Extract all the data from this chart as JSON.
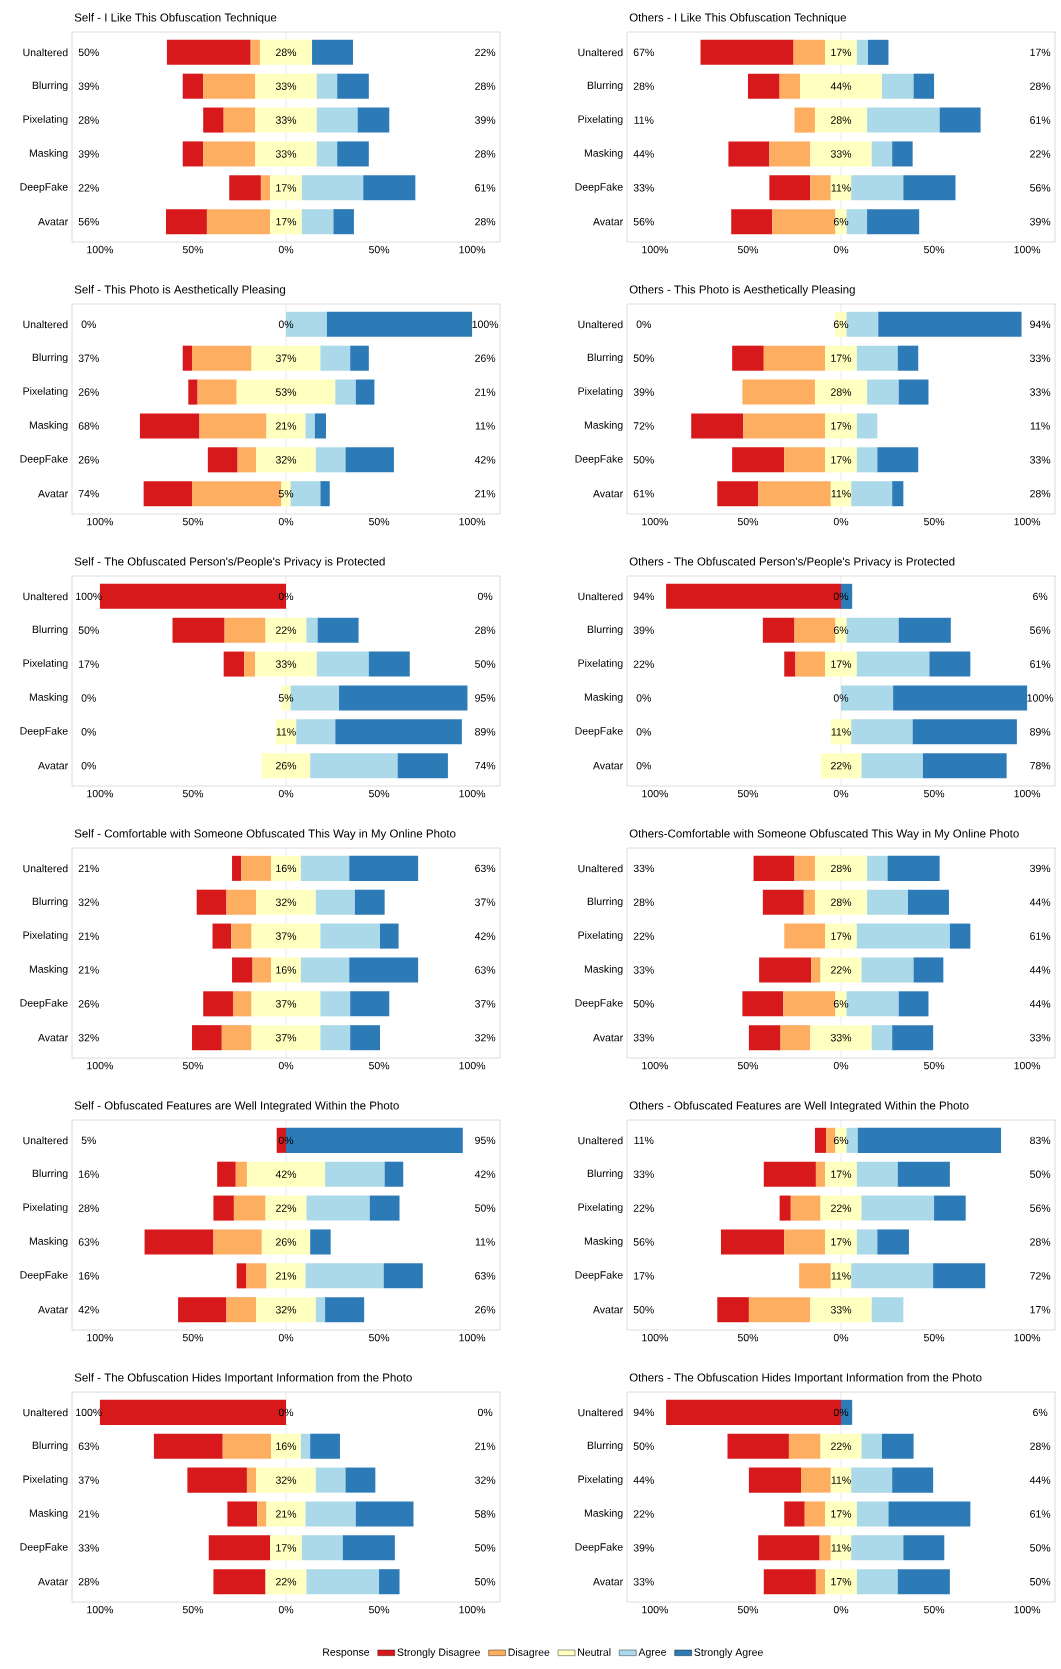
{
  "chart_data": [
    {
      "type": "bar",
      "orientation": "horizontal",
      "title": "Self - I Like This Obfuscation Technique",
      "categories": [
        "Unaltered",
        "Blurring",
        "Pixelating",
        "Masking",
        "DeepFake",
        "Avatar"
      ],
      "xlim": [
        -115,
        115
      ],
      "xticks": [
        {
          "value": -100,
          "label": "100%"
        },
        {
          "value": -50,
          "label": "50%"
        },
        {
          "value": 0,
          "label": "0%"
        },
        {
          "value": 50,
          "label": "50%"
        },
        {
          "value": 100,
          "label": "100%"
        }
      ],
      "ref_lines": [
        {
          "axis": "x",
          "value": 0,
          "color": "#c8c8c8"
        }
      ],
      "series": [
        {
          "color": "#d7191c",
          "values": [
            45,
            11,
            11,
            11,
            17,
            22
          ],
          "base": [
            -64,
            -55.5,
            -44.5,
            -55.5,
            -30.5,
            -64.5
          ]
        },
        {
          "color": "#fdae61",
          "values": [
            5,
            28,
            17,
            28,
            5,
            34
          ],
          "base": [
            -19,
            -44.5,
            -33.5,
            -44.5,
            -13.5,
            -42.5
          ]
        },
        {
          "color": "#ffffbf",
          "values": [
            28,
            33,
            33,
            33,
            17,
            17
          ],
          "base": [
            -14,
            -16.5,
            -16.5,
            -16.5,
            -8.5,
            -8.5
          ],
          "value_labels": [
            "28%",
            "33%",
            "33%",
            "33%",
            "17%",
            "17%"
          ]
        },
        {
          "color": "#abd9e9",
          "values": [
            0,
            11,
            22,
            11,
            33,
            17
          ],
          "base": [
            null,
            16.5,
            16.5,
            16.5,
            8.5,
            8.5
          ]
        },
        {
          "color": "#2c7bb6",
          "values": [
            22,
            17,
            17,
            17,
            28,
            11
          ],
          "base": [
            14,
            27.5,
            38.5,
            27.5,
            41.5,
            25.5
          ]
        }
      ],
      "annotations": [
        "50%",
        "39%",
        "28%",
        "39%",
        "22%",
        "56%",
        "22%",
        "28%",
        "39%",
        "28%",
        "61%",
        "28%"
      ]
    },
    {
      "type": "bar",
      "orientation": "horizontal",
      "title": "Others - I Like This Obfuscation Technique",
      "categories": [
        "Unaltered",
        "Blurring",
        "Pixelating",
        "Masking",
        "DeepFake",
        "Avatar"
      ],
      "xlim": [
        -115,
        115
      ],
      "xticks": [
        {
          "value": -100,
          "label": "100%"
        },
        {
          "value": -50,
          "label": "50%"
        },
        {
          "value": 0,
          "label": "0%"
        },
        {
          "value": 50,
          "label": "50%"
        },
        {
          "value": 100,
          "label": "100%"
        }
      ],
      "ref_lines": [
        {
          "axis": "x",
          "value": 0,
          "color": "#c8c8c8"
        }
      ],
      "series": [
        {
          "color": "#d7191c",
          "values": [
            50,
            17,
            0,
            22,
            22,
            22
          ],
          "base": [
            -75.5,
            -50,
            null,
            -60.5,
            -38.5,
            -59
          ]
        },
        {
          "color": "#fdae61",
          "values": [
            17,
            11,
            11,
            22,
            11,
            34
          ],
          "base": [
            -25.5,
            -33,
            -25,
            -38.5,
            -16.5,
            -37
          ]
        },
        {
          "color": "#ffffbf",
          "values": [
            17,
            44,
            28,
            33,
            11,
            6
          ],
          "base": [
            -8.5,
            -22,
            -14,
            -16.5,
            -5.5,
            -3
          ],
          "value_labels": [
            "17%",
            "44%",
            "28%",
            "33%",
            "11%",
            "6%"
          ]
        },
        {
          "color": "#abd9e9",
          "values": [
            6,
            17,
            39,
            11,
            28,
            11
          ],
          "base": [
            8.5,
            22,
            14,
            16.5,
            5.5,
            3
          ]
        },
        {
          "color": "#2c7bb6",
          "values": [
            11,
            11,
            22,
            11,
            28,
            28
          ],
          "base": [
            14.5,
            39,
            53,
            27.5,
            33.5,
            14
          ]
        }
      ],
      "annotations": [
        "67%",
        "28%",
        "11%",
        "44%",
        "33%",
        "56%",
        "17%",
        "28%",
        "61%",
        "22%",
        "56%",
        "39%"
      ]
    },
    {
      "type": "bar",
      "orientation": "horizontal",
      "title": "Self - This Photo is Aesthetically Pleasing",
      "categories": [
        "Unaltered",
        "Blurring",
        "Pixelating",
        "Masking",
        "DeepFake",
        "Avatar"
      ],
      "xlim": [
        -115,
        115
      ],
      "xticks": [
        {
          "value": -100,
          "label": "100%"
        },
        {
          "value": -50,
          "label": "50%"
        },
        {
          "value": 0,
          "label": "0%"
        },
        {
          "value": 50,
          "label": "50%"
        },
        {
          "value": 100,
          "label": "100%"
        }
      ],
      "ref_lines": [
        {
          "axis": "x",
          "value": 0,
          "color": "#c8c8c8"
        }
      ],
      "series": [
        {
          "color": "#d7191c",
          "values": [
            0,
            5,
            5,
            32,
            16,
            26
          ],
          "base": [
            null,
            -55.5,
            -52.5,
            -78.5,
            -42,
            -76.5
          ]
        },
        {
          "color": "#fdae61",
          "values": [
            0,
            32,
            21,
            36,
            10,
            48
          ],
          "base": [
            null,
            -50.5,
            -47.5,
            -46.5,
            -26,
            -50.5
          ]
        },
        {
          "color": "#ffffbf",
          "values": [
            0,
            37,
            53,
            21,
            32,
            5
          ],
          "base": [
            null,
            -18.5,
            -26.5,
            -10.5,
            -16,
            -2.5
          ],
          "value_labels": [
            "0%",
            "37%",
            "53%",
            "21%",
            "32%",
            "5%"
          ]
        },
        {
          "color": "#abd9e9",
          "values": [
            22,
            16,
            11,
            5,
            16,
            16
          ],
          "base": [
            0,
            18.5,
            26.5,
            10.5,
            16,
            2.5
          ]
        },
        {
          "color": "#2c7bb6",
          "values": [
            78,
            10,
            10,
            6,
            26,
            5
          ],
          "base": [
            22,
            34.5,
            37.5,
            15.5,
            32,
            18.5
          ]
        }
      ],
      "annotations": [
        "0%",
        "37%",
        "26%",
        "68%",
        "26%",
        "74%",
        "100%",
        "26%",
        "21%",
        "11%",
        "42%",
        "21%"
      ]
    },
    {
      "type": "bar",
      "orientation": "horizontal",
      "title": "Others - This Photo is Aesthetically Pleasing",
      "categories": [
        "Unaltered",
        "Blurring",
        "Pixelating",
        "Masking",
        "DeepFake",
        "Avatar"
      ],
      "xlim": [
        -115,
        115
      ],
      "xticks": [
        {
          "value": -100,
          "label": "100%"
        },
        {
          "value": -50,
          "label": "50%"
        },
        {
          "value": 0,
          "label": "0%"
        },
        {
          "value": 50,
          "label": "50%"
        },
        {
          "value": 100,
          "label": "100%"
        }
      ],
      "ref_lines": [
        {
          "axis": "x",
          "value": 0,
          "color": "#c8c8c8"
        }
      ],
      "series": [
        {
          "color": "#d7191c",
          "values": [
            0,
            17,
            0,
            28,
            28,
            22
          ],
          "base": [
            null,
            -58.5,
            null,
            -80.5,
            -58.5,
            -66.5
          ]
        },
        {
          "color": "#fdae61",
          "values": [
            0,
            33,
            39,
            44,
            22,
            39
          ],
          "base": [
            null,
            -41.5,
            -53,
            -52.5,
            -30.5,
            -44.5
          ]
        },
        {
          "color": "#ffffbf",
          "values": [
            6,
            17,
            28,
            17,
            17,
            11
          ],
          "base": [
            -3,
            -8.5,
            -14,
            -8.5,
            -8.5,
            -5.5
          ],
          "value_labels": [
            "6%",
            "17%",
            "28%",
            "17%",
            "17%",
            "11%"
          ]
        },
        {
          "color": "#abd9e9",
          "values": [
            17,
            22,
            17,
            11,
            11,
            22
          ],
          "base": [
            3,
            8.5,
            14,
            8.5,
            8.5,
            5.5
          ]
        },
        {
          "color": "#2c7bb6",
          "values": [
            77,
            11,
            16,
            0,
            22,
            6
          ],
          "base": [
            20,
            30.5,
            31,
            null,
            19.5,
            27.5
          ]
        }
      ],
      "annotations": [
        "0%",
        "50%",
        "39%",
        "72%",
        "50%",
        "61%",
        "94%",
        "33%",
        "33%",
        "11%",
        "33%",
        "28%"
      ]
    },
    {
      "type": "bar",
      "orientation": "horizontal",
      "title": "Self - The Obfuscated Person's/People's Privacy is Protected",
      "categories": [
        "Unaltered",
        "Blurring",
        "Pixelating",
        "Masking",
        "DeepFake",
        "Avatar"
      ],
      "xlim": [
        -115,
        115
      ],
      "xticks": [
        {
          "value": -100,
          "label": "100%"
        },
        {
          "value": -50,
          "label": "50%"
        },
        {
          "value": 0,
          "label": "0%"
        },
        {
          "value": 50,
          "label": "50%"
        },
        {
          "value": 100,
          "label": "100%"
        }
      ],
      "ref_lines": [
        {
          "axis": "x",
          "value": 0,
          "color": "#c8c8c8"
        }
      ],
      "series": [
        {
          "color": "#d7191c",
          "values": [
            100,
            28,
            11,
            0,
            0,
            0
          ],
          "base": [
            -100,
            -61,
            -33.5,
            null,
            null,
            null
          ]
        },
        {
          "color": "#fdae61",
          "values": [
            0,
            22,
            6,
            0,
            0,
            0
          ],
          "base": [
            null,
            -33,
            -22.5,
            null,
            null,
            null
          ]
        },
        {
          "color": "#ffffbf",
          "values": [
            0,
            22,
            33,
            5,
            11,
            26
          ],
          "base": [
            null,
            -11,
            -16.5,
            -2.5,
            -5.5,
            -13
          ],
          "value_labels": [
            "0%",
            "22%",
            "33%",
            "5%",
            "11%",
            "26%"
          ]
        },
        {
          "color": "#abd9e9",
          "values": [
            0,
            6,
            28,
            26,
            21,
            47
          ],
          "base": [
            null,
            11,
            16.5,
            2.5,
            5.5,
            13
          ]
        },
        {
          "color": "#2c7bb6",
          "values": [
            0,
            22,
            22,
            69,
            68,
            27
          ],
          "base": [
            null,
            17,
            44.5,
            28.5,
            26.5,
            60
          ]
        }
      ],
      "annotations": [
        "100%",
        "50%",
        "17%",
        "0%",
        "0%",
        "0%",
        "0%",
        "28%",
        "50%",
        "95%",
        "89%",
        "74%"
      ]
    },
    {
      "type": "bar",
      "orientation": "horizontal",
      "title": "Others - The Obfuscated Person's/People's Privacy is Protected",
      "categories": [
        "Unaltered",
        "Blurring",
        "Pixelating",
        "Masking",
        "DeepFake",
        "Avatar"
      ],
      "xlim": [
        -115,
        115
      ],
      "xticks": [
        {
          "value": -100,
          "label": "100%"
        },
        {
          "value": -50,
          "label": "50%"
        },
        {
          "value": 0,
          "label": "0%"
        },
        {
          "value": 50,
          "label": "50%"
        },
        {
          "value": 100,
          "label": "100%"
        }
      ],
      "ref_lines": [
        {
          "axis": "x",
          "value": 0,
          "color": "#c8c8c8"
        }
      ],
      "series": [
        {
          "color": "#d7191c",
          "values": [
            94,
            17,
            6,
            0,
            0,
            0
          ],
          "base": [
            -94,
            -42,
            -30.5,
            null,
            null,
            null
          ]
        },
        {
          "color": "#fdae61",
          "values": [
            0,
            22,
            16,
            0,
            0,
            0
          ],
          "base": [
            null,
            -25,
            -24.5,
            null,
            null,
            null
          ]
        },
        {
          "color": "#ffffbf",
          "values": [
            0,
            6,
            17,
            0,
            11,
            22
          ],
          "base": [
            null,
            -3,
            -8.5,
            null,
            -5.5,
            -11
          ],
          "value_labels": [
            "0%",
            "6%",
            "17%",
            "0%",
            "11%",
            "22%"
          ]
        },
        {
          "color": "#abd9e9",
          "values": [
            0,
            28,
            39,
            28,
            33,
            33
          ],
          "base": [
            null,
            3,
            8.5,
            0,
            5.5,
            11
          ]
        },
        {
          "color": "#2c7bb6",
          "values": [
            6,
            28,
            22,
            72,
            56,
            45
          ],
          "base": [
            0,
            31,
            47.5,
            28,
            38.5,
            44
          ]
        }
      ],
      "annotations": [
        "94%",
        "39%",
        "22%",
        "0%",
        "0%",
        "0%",
        "6%",
        "56%",
        "61%",
        "100%",
        "89%",
        "78%"
      ]
    },
    {
      "type": "bar",
      "orientation": "horizontal",
      "title": "Self - Comfortable with Someone Obfuscated This Way in My Online Photo",
      "categories": [
        "Unaltered",
        "Blurring",
        "Pixelating",
        "Masking",
        "DeepFake",
        "Avatar"
      ],
      "xlim": [
        -115,
        115
      ],
      "xticks": [
        {
          "value": -100,
          "label": "100%"
        },
        {
          "value": -50,
          "label": "50%"
        },
        {
          "value": 0,
          "label": "0%"
        },
        {
          "value": 50,
          "label": "50%"
        },
        {
          "value": 100,
          "label": "100%"
        }
      ],
      "ref_lines": [
        {
          "axis": "x",
          "value": 0,
          "color": "#c8c8c8"
        }
      ],
      "series": [
        {
          "color": "#d7191c",
          "values": [
            5,
            16,
            10,
            11,
            16,
            16
          ],
          "base": [
            -29,
            -48,
            -39.5,
            -29,
            -44.5,
            -50.5
          ]
        },
        {
          "color": "#fdae61",
          "values": [
            16,
            16,
            11,
            10,
            10,
            16
          ],
          "base": [
            -24,
            -32,
            -29.5,
            -18,
            -28.5,
            -34.5
          ]
        },
        {
          "color": "#ffffbf",
          "values": [
            16,
            32,
            37,
            16,
            37,
            37
          ],
          "base": [
            -8,
            -16,
            -18.5,
            -8,
            -18.5,
            -18.5
          ],
          "value_labels": [
            "16%",
            "32%",
            "37%",
            "16%",
            "37%",
            "37%"
          ]
        },
        {
          "color": "#abd9e9",
          "values": [
            26,
            21,
            32,
            26,
            16,
            16
          ],
          "base": [
            8,
            16,
            18.5,
            8,
            18.5,
            18.5
          ]
        },
        {
          "color": "#2c7bb6",
          "values": [
            37,
            16,
            10,
            37,
            21,
            16
          ],
          "base": [
            34,
            37,
            50.5,
            34,
            34.5,
            34.5
          ]
        }
      ],
      "annotations": [
        "21%",
        "32%",
        "21%",
        "21%",
        "26%",
        "32%",
        "63%",
        "37%",
        "42%",
        "63%",
        "37%",
        "32%"
      ]
    },
    {
      "type": "bar",
      "orientation": "horizontal",
      "title": "Others-Comfortable with Someone Obfuscated This Way in My Online Photo",
      "categories": [
        "Unaltered",
        "Blurring",
        "Pixelating",
        "Masking",
        "DeepFake",
        "Avatar"
      ],
      "xlim": [
        -115,
        115
      ],
      "xticks": [
        {
          "value": -100,
          "label": "100%"
        },
        {
          "value": -50,
          "label": "50%"
        },
        {
          "value": 0,
          "label": "0%"
        },
        {
          "value": 50,
          "label": "50%"
        },
        {
          "value": 100,
          "label": "100%"
        }
      ],
      "ref_lines": [
        {
          "axis": "x",
          "value": 0,
          "color": "#c8c8c8"
        }
      ],
      "series": [
        {
          "color": "#d7191c",
          "values": [
            22,
            22,
            0,
            28,
            22,
            17
          ],
          "base": [
            -47,
            -42,
            null,
            -44,
            -53,
            -49.5
          ]
        },
        {
          "color": "#fdae61",
          "values": [
            11,
            6,
            22,
            5,
            28,
            16
          ],
          "base": [
            -25,
            -20,
            -30.5,
            -16,
            -31,
            -32.5
          ]
        },
        {
          "color": "#ffffbf",
          "values": [
            28,
            28,
            17,
            22,
            6,
            33
          ],
          "base": [
            -14,
            -14,
            -8.5,
            -11,
            -3,
            -16.5
          ],
          "value_labels": [
            "28%",
            "28%",
            "17%",
            "22%",
            "6%",
            "33%"
          ]
        },
        {
          "color": "#abd9e9",
          "values": [
            11,
            22,
            50,
            28,
            28,
            11
          ],
          "base": [
            14,
            14,
            8.5,
            11,
            3,
            16.5
          ]
        },
        {
          "color": "#2c7bb6",
          "values": [
            28,
            22,
            11,
            16,
            16,
            22
          ],
          "base": [
            25,
            36,
            58.5,
            39,
            31,
            27.5
          ]
        }
      ],
      "annotations": [
        "33%",
        "28%",
        "22%",
        "33%",
        "50%",
        "33%",
        "39%",
        "44%",
        "61%",
        "44%",
        "44%",
        "33%"
      ]
    },
    {
      "type": "bar",
      "orientation": "horizontal",
      "title": "Self - Obfuscated Features are Well Integrated Within the Photo",
      "categories": [
        "Unaltered",
        "Blurring",
        "Pixelating",
        "Masking",
        "DeepFake",
        "Avatar"
      ],
      "xlim": [
        -115,
        115
      ],
      "xticks": [
        {
          "value": -100,
          "label": "100%"
        },
        {
          "value": -50,
          "label": "50%"
        },
        {
          "value": 0,
          "label": "0%"
        },
        {
          "value": 50,
          "label": "50%"
        },
        {
          "value": 100,
          "label": "100%"
        }
      ],
      "ref_lines": [
        {
          "axis": "x",
          "value": 0,
          "color": "#c8c8c8"
        }
      ],
      "series": [
        {
          "color": "#d7191c",
          "values": [
            5,
            10,
            11,
            37,
            5,
            26
          ],
          "base": [
            -5,
            -37,
            -39,
            -76,
            -26.5,
            -58
          ]
        },
        {
          "color": "#fdae61",
          "values": [
            0,
            6,
            17,
            26,
            11,
            16
          ],
          "base": [
            null,
            -27,
            -28,
            -39,
            -21.5,
            -32
          ]
        },
        {
          "color": "#ffffbf",
          "values": [
            0,
            42,
            22,
            26,
            21,
            32
          ],
          "base": [
            null,
            -21,
            -11,
            -13,
            -10.5,
            -16
          ],
          "value_labels": [
            "0%",
            "42%",
            "22%",
            "26%",
            "21%",
            "32%"
          ]
        },
        {
          "color": "#abd9e9",
          "values": [
            0,
            32,
            34,
            0,
            42,
            5
          ],
          "base": [
            null,
            21,
            11,
            null,
            10.5,
            16
          ]
        },
        {
          "color": "#2c7bb6",
          "values": [
            95,
            10,
            16,
            11,
            21,
            21
          ],
          "base": [
            0,
            53,
            45,
            13,
            52.5,
            21
          ]
        }
      ],
      "annotations": [
        "5%",
        "16%",
        "28%",
        "63%",
        "16%",
        "42%",
        "95%",
        "42%",
        "50%",
        "11%",
        "63%",
        "26%"
      ]
    },
    {
      "type": "bar",
      "orientation": "horizontal",
      "title": "Others - Obfuscated Features are Well Integrated Within the Photo",
      "categories": [
        "Unaltered",
        "Blurring",
        "Pixelating",
        "Masking",
        "DeepFake",
        "Avatar"
      ],
      "xlim": [
        -115,
        115
      ],
      "xticks": [
        {
          "value": -100,
          "label": "100%"
        },
        {
          "value": -50,
          "label": "50%"
        },
        {
          "value": 0,
          "label": "0%"
        },
        {
          "value": 50,
          "label": "50%"
        },
        {
          "value": 100,
          "label": "100%"
        }
      ],
      "ref_lines": [
        {
          "axis": "x",
          "value": 0,
          "color": "#c8c8c8"
        }
      ],
      "series": [
        {
          "color": "#d7191c",
          "values": [
            6,
            28,
            6,
            34,
            0,
            17
          ],
          "base": [
            -14,
            -41.5,
            -33,
            -64.5,
            null,
            -66.5
          ]
        },
        {
          "color": "#fdae61",
          "values": [
            5,
            5,
            16,
            22,
            17,
            33
          ],
          "base": [
            -8,
            -13.5,
            -27,
            -30.5,
            -22.5,
            -49.5
          ]
        },
        {
          "color": "#ffffbf",
          "values": [
            6,
            17,
            22,
            17,
            11,
            33
          ],
          "base": [
            -3,
            -8.5,
            -11,
            -8.5,
            -5.5,
            -16.5
          ],
          "value_labels": [
            "6%",
            "17%",
            "22%",
            "17%",
            "11%",
            "33%"
          ]
        },
        {
          "color": "#abd9e9",
          "values": [
            6,
            22,
            39,
            11,
            44,
            17
          ],
          "base": [
            3,
            8.5,
            11,
            8.5,
            5.5,
            16.5
          ]
        },
        {
          "color": "#2c7bb6",
          "values": [
            77,
            28,
            17,
            17,
            28,
            0
          ],
          "base": [
            9,
            30.5,
            50,
            19.5,
            49.5,
            null
          ]
        }
      ],
      "annotations": [
        "11%",
        "33%",
        "22%",
        "56%",
        "17%",
        "50%",
        "83%",
        "50%",
        "56%",
        "28%",
        "72%",
        "17%"
      ]
    },
    {
      "type": "bar",
      "orientation": "horizontal",
      "title": "Self - The Obfuscation Hides Important Information from the Photo",
      "categories": [
        "Unaltered",
        "Blurring",
        "Pixelating",
        "Masking",
        "DeepFake",
        "Avatar"
      ],
      "xlim": [
        -115,
        115
      ],
      "xticks": [
        {
          "value": -100,
          "label": "100%"
        },
        {
          "value": -50,
          "label": "50%"
        },
        {
          "value": 0,
          "label": "0%"
        },
        {
          "value": 50,
          "label": "50%"
        },
        {
          "value": 100,
          "label": "100%"
        }
      ],
      "ref_lines": [
        {
          "axis": "x",
          "value": 0,
          "color": "#c8c8c8"
        }
      ],
      "legend": "bottom",
      "legend_title": "Response",
      "series": [
        {
          "name": "Strongly Disagree",
          "color": "#d7191c",
          "values": [
            100,
            37,
            32,
            16,
            33,
            28
          ],
          "base": [
            -100,
            -71,
            -53,
            -31.5,
            -41.5,
            -39
          ]
        },
        {
          "name": "Disagree",
          "color": "#fdae61",
          "values": [
            0,
            26,
            5,
            5,
            0,
            0
          ],
          "base": [
            null,
            -34,
            -21,
            -15.5,
            null,
            null
          ]
        },
        {
          "name": "Neutral",
          "color": "#ffffbf",
          "values": [
            0,
            16,
            32,
            21,
            17,
            22
          ],
          "base": [
            null,
            -8,
            -16,
            -10.5,
            -8.5,
            -11
          ],
          "value_labels": [
            "0%",
            "16%",
            "32%",
            "21%",
            "17%",
            "22%"
          ]
        },
        {
          "name": "Agree",
          "color": "#abd9e9",
          "values": [
            0,
            5,
            16,
            27,
            22,
            39
          ],
          "base": [
            null,
            8,
            16,
            10.5,
            8.5,
            11
          ]
        },
        {
          "name": "Strongly Agree",
          "color": "#2c7bb6",
          "values": [
            0,
            16,
            16,
            31,
            28,
            11
          ],
          "base": [
            null,
            13,
            32,
            37.5,
            30.5,
            50
          ]
        }
      ],
      "annotations": [
        "100%",
        "63%",
        "37%",
        "21%",
        "33%",
        "28%",
        "0%",
        "21%",
        "32%",
        "58%",
        "50%",
        "50%"
      ]
    },
    {
      "type": "bar",
      "orientation": "horizontal",
      "title": "Others - The Obfuscation Hides Important Information from the Photo",
      "categories": [
        "Unaltered",
        "Blurring",
        "Pixelating",
        "Masking",
        "DeepFake",
        "Avatar"
      ],
      "xlim": [
        -115,
        115
      ],
      "xticks": [
        {
          "value": -100,
          "label": "100%"
        },
        {
          "value": -50,
          "label": "50%"
        },
        {
          "value": 0,
          "label": "0%"
        },
        {
          "value": 50,
          "label": "50%"
        },
        {
          "value": 100,
          "label": "100%"
        }
      ],
      "ref_lines": [
        {
          "axis": "x",
          "value": 0,
          "color": "#c8c8c8"
        }
      ],
      "series": [
        {
          "color": "#d7191c",
          "values": [
            94,
            33,
            28,
            11,
            33,
            28
          ],
          "base": [
            -94,
            -61,
            -49.5,
            -30.5,
            -44.5,
            -41.5
          ]
        },
        {
          "color": "#fdae61",
          "values": [
            0,
            17,
            16,
            11,
            6,
            5
          ],
          "base": [
            null,
            -28,
            -21.5,
            -19.5,
            -11.5,
            -13.5
          ]
        },
        {
          "color": "#ffffbf",
          "values": [
            0,
            22,
            11,
            17,
            11,
            17
          ],
          "base": [
            null,
            -11,
            -5.5,
            -8.5,
            -5.5,
            -8.5
          ],
          "value_labels": [
            "0%",
            "22%",
            "11%",
            "17%",
            "11%",
            "17%"
          ]
        },
        {
          "color": "#abd9e9",
          "values": [
            0,
            11,
            22,
            17,
            28,
            22
          ],
          "base": [
            null,
            11,
            5.5,
            8.5,
            5.5,
            8.5
          ]
        },
        {
          "color": "#2c7bb6",
          "values": [
            6,
            17,
            22,
            44,
            22,
            28
          ],
          "base": [
            0,
            22,
            27.5,
            25.5,
            33.5,
            30.5
          ]
        }
      ],
      "annotations": [
        "94%",
        "50%",
        "44%",
        "22%",
        "39%",
        "33%",
        "6%",
        "28%",
        "44%",
        "61%",
        "50%",
        "50%"
      ]
    }
  ]
}
